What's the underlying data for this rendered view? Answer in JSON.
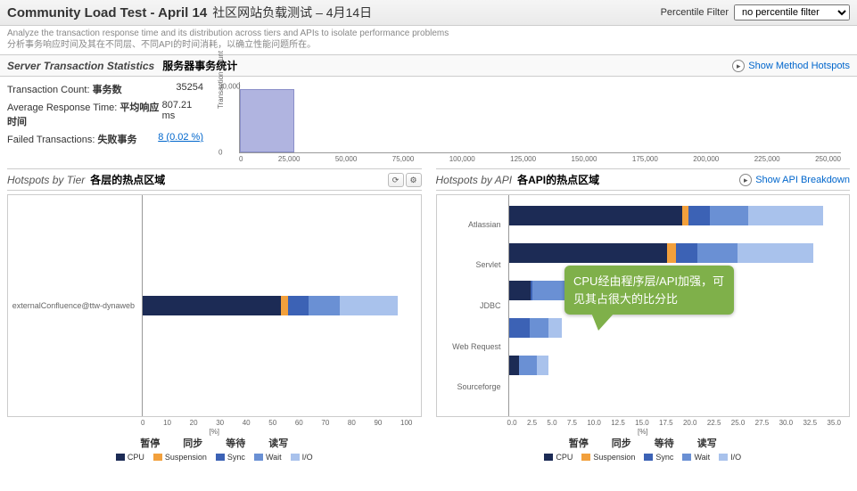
{
  "header": {
    "title_en": "Community Load Test - April 14",
    "title_cn": "社区网站负载测试 – 4月14日",
    "filter_label": "Percentile Filter",
    "filter_value": "no percentile filter"
  },
  "subtitle": {
    "en": "Analyze the transaction response time and its distribution across tiers and APIs to isolate performance problems",
    "cn": "分析事务响应时间及其在不同层、不同API的时间消耗，以确立性能问题所在。"
  },
  "stats_section": {
    "title_en": "Server Transaction Statistics",
    "title_cn": "服务器事务统计",
    "link_label": "Show Method Hotspots"
  },
  "stats": {
    "tx_count_lbl": "Transaction Count:",
    "tx_count_cn": "事务数",
    "tx_count_val": "35254",
    "avg_lbl": "Average Response Time:",
    "avg_cn": "平均响应时间",
    "avg_val": "807.21 ms",
    "failed_lbl": "Failed Transactions:",
    "failed_cn": "失败事务",
    "failed_val": "8 (0.02 %)"
  },
  "histogram": {
    "ylabel": "Transaction Count",
    "yticks": [
      "30,000",
      "0"
    ],
    "bar": {
      "left_pct": 0,
      "width_pct": 9,
      "height_pct": 90,
      "color": "#b0b4e0",
      "border": "#8a8fc9"
    },
    "xticks": [
      "0",
      "25,000",
      "50,000",
      "75,000",
      "100,000",
      "125,000",
      "150,000",
      "175,000",
      "200,000",
      "225,000",
      "250,000"
    ]
  },
  "colors": {
    "cpu": "#1c2b55",
    "suspension": "#f2a03c",
    "sync": "#3c62b5",
    "wait": "#6a90d4",
    "io": "#a9c2ec"
  },
  "tier_panel": {
    "title_en": "Hotspots by Tier",
    "title_cn": "各层的热点区域",
    "axis_label": "[%]",
    "rows": [
      {
        "label": "externalConfluence@ttw-dynaweb",
        "width_pct": 95,
        "segments": [
          {
            "key": "cpu",
            "pct": 54
          },
          {
            "key": "suspension",
            "pct": 3
          },
          {
            "key": "sync",
            "pct": 8
          },
          {
            "key": "wait",
            "pct": 12
          },
          {
            "key": "io",
            "pct": 23
          }
        ]
      }
    ],
    "xticks": [
      "0",
      "10",
      "20",
      "30",
      "40",
      "50",
      "60",
      "70",
      "80",
      "90",
      "100"
    ]
  },
  "api_panel": {
    "title_en": "Hotspots by API",
    "title_cn": "各API的热点区域",
    "link_label": "Show API Breakdown",
    "axis_label": "[%]",
    "rows": [
      {
        "label": "Atlassian",
        "width_pct": 95,
        "segments": [
          {
            "key": "cpu",
            "pct": 55
          },
          {
            "key": "suspension",
            "pct": 2
          },
          {
            "key": "sync",
            "pct": 7
          },
          {
            "key": "wait",
            "pct": 12
          },
          {
            "key": "io",
            "pct": 24
          }
        ]
      },
      {
        "label": "Servlet",
        "width_pct": 92,
        "segments": [
          {
            "key": "cpu",
            "pct": 52
          },
          {
            "key": "suspension",
            "pct": 3
          },
          {
            "key": "sync",
            "pct": 7
          },
          {
            "key": "wait",
            "pct": 13
          },
          {
            "key": "io",
            "pct": 25
          }
        ]
      },
      {
        "label": "JDBC",
        "width_pct": 22,
        "segments": [
          {
            "key": "cpu",
            "pct": 30
          },
          {
            "key": "sync",
            "pct": 3
          },
          {
            "key": "wait",
            "pct": 67
          }
        ]
      },
      {
        "label": "Web Request",
        "width_pct": 16,
        "segments": [
          {
            "key": "sync",
            "pct": 40
          },
          {
            "key": "wait",
            "pct": 35
          },
          {
            "key": "io",
            "pct": 25
          }
        ]
      },
      {
        "label": "Sourceforge",
        "width_pct": 12,
        "segments": [
          {
            "key": "cpu",
            "pct": 25
          },
          {
            "key": "wait",
            "pct": 45
          },
          {
            "key": "io",
            "pct": 30
          }
        ]
      }
    ],
    "xticks": [
      "0.0",
      "2.5",
      "5.0",
      "7.5",
      "10.0",
      "12.5",
      "15.0",
      "17.5",
      "20.0",
      "22.5",
      "25.0",
      "27.5",
      "30.0",
      "32.5",
      "35.0"
    ]
  },
  "legend": {
    "items": [
      {
        "key": "cpu",
        "label": "CPU"
      },
      {
        "key": "suspension",
        "label": "Suspension"
      },
      {
        "key": "sync",
        "label": "Sync"
      },
      {
        "key": "wait",
        "label": "Wait"
      },
      {
        "key": "io",
        "label": "I/O"
      }
    ],
    "cn_labels": [
      "暂停",
      "同步",
      "等待",
      "读写"
    ]
  },
  "callout": {
    "text": "CPU经由程序层/API加强，可见其占很大的比分比",
    "bg": "#7fb04a"
  }
}
